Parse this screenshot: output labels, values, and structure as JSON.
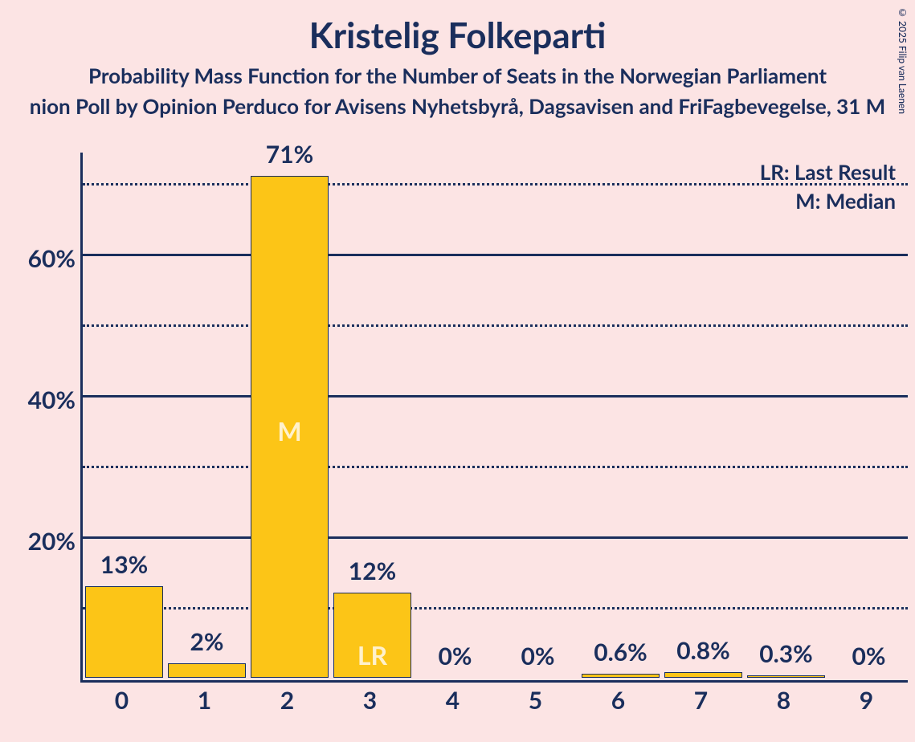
{
  "title": "Kristelig Folkeparti",
  "subtitle": "Probability Mass Function for the Number of Seats in the Norwegian Parliament",
  "subtitle2": "nion Poll by Opinion Perduco for Avisens Nyhetsbyrå, Dagsavisen and FriFagbevegelse, 31 M",
  "copyright": "© 2025 Filip van Laenen",
  "legend": {
    "lr": "LR: Last Result",
    "m": "M: Median"
  },
  "chart": {
    "type": "bar",
    "background_color": "#fce4e4",
    "bar_color": "#fcc517",
    "bar_border_color": "#1a2e5c",
    "text_color": "#1a2e5c",
    "bar_inner_text_color": "#fff1cc",
    "ylim": [
      0,
      75
    ],
    "y_major_ticks": [
      20,
      40,
      60
    ],
    "y_minor_ticks": [
      10,
      30,
      50,
      70
    ],
    "y_labels": [
      "20%",
      "40%",
      "60%"
    ],
    "x_categories": [
      "0",
      "1",
      "2",
      "3",
      "4",
      "5",
      "6",
      "7",
      "8",
      "9"
    ],
    "bars": [
      {
        "x": "0",
        "value": 13,
        "label": "13%",
        "inner": ""
      },
      {
        "x": "1",
        "value": 2,
        "label": "2%",
        "inner": ""
      },
      {
        "x": "2",
        "value": 71,
        "label": "71%",
        "inner": "M"
      },
      {
        "x": "3",
        "value": 12,
        "label": "12%",
        "inner": "LR"
      },
      {
        "x": "4",
        "value": 0,
        "label": "0%",
        "inner": ""
      },
      {
        "x": "5",
        "value": 0,
        "label": "0%",
        "inner": ""
      },
      {
        "x": "6",
        "value": 0.6,
        "label": "0.6%",
        "inner": ""
      },
      {
        "x": "7",
        "value": 0.8,
        "label": "0.8%",
        "inner": ""
      },
      {
        "x": "8",
        "value": 0.3,
        "label": "0.3%",
        "inner": ""
      },
      {
        "x": "9",
        "value": 0,
        "label": "0%",
        "inner": ""
      }
    ],
    "title_fontsize": 44,
    "subtitle_fontsize": 26,
    "axis_label_fontsize": 30,
    "bar_label_fontsize": 30,
    "legend_fontsize": 26,
    "bar_width_ratio": 0.95
  }
}
